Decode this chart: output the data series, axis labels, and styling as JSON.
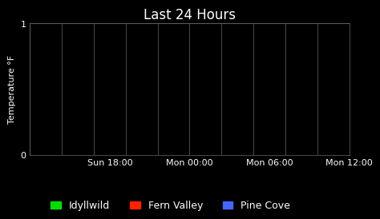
{
  "title": "Last 24 Hours",
  "ylabel": "Temperature °F",
  "background_color": "#000000",
  "plot_bg_color": "#000000",
  "text_color": "#ffffff",
  "grid_color": "#666666",
  "title_fontsize": 12,
  "label_fontsize": 8,
  "tick_fontsize": 8,
  "legend_fontsize": 9,
  "ylim": [
    0,
    1
  ],
  "yticks": [
    0,
    1
  ],
  "xtick_labels": [
    "Sun 18:00",
    "Mon 00:00",
    "Mon 06:00",
    "Mon 12:00"
  ],
  "xtick_positions": [
    0.25,
    0.5,
    0.75,
    1.0
  ],
  "num_vgridlines": 10,
  "legend_items": [
    {
      "label": "Idyllwild",
      "color": "#00dd00"
    },
    {
      "label": "Fern Valley",
      "color": "#ff2200"
    },
    {
      "label": "Pine Cove",
      "color": "#4466ff"
    }
  ]
}
